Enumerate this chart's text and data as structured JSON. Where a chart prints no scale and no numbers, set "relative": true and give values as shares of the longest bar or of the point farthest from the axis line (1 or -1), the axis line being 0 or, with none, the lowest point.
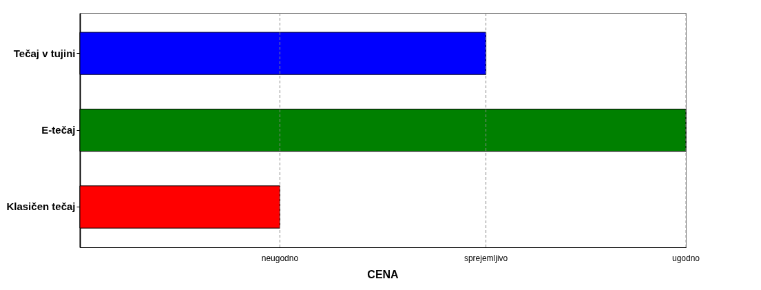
{
  "chart_data": {
    "type": "bar",
    "orientation": "horizontal",
    "relative": true,
    "xlabel": "CENA",
    "categories": [
      "Tečaj v tujini",
      "E-tečaj",
      "Klasičen tečaj"
    ],
    "values": [
      0.67,
      1,
      0.33
    ],
    "colors": [
      "#0000ff",
      "#008000",
      "#ff0000"
    ],
    "ref_lines": [
      {
        "axis": "x",
        "value": 0.33,
        "label": "neugodno",
        "color": "#888888",
        "line_style": "dashed"
      },
      {
        "axis": "x",
        "value": 0.67,
        "label": "sprejemljivo",
        "color": "#888888",
        "line_style": "dashed"
      },
      {
        "axis": "x",
        "value": 1,
        "label": "ugodno",
        "color": "#888888",
        "line_style": "dashed"
      }
    ]
  }
}
